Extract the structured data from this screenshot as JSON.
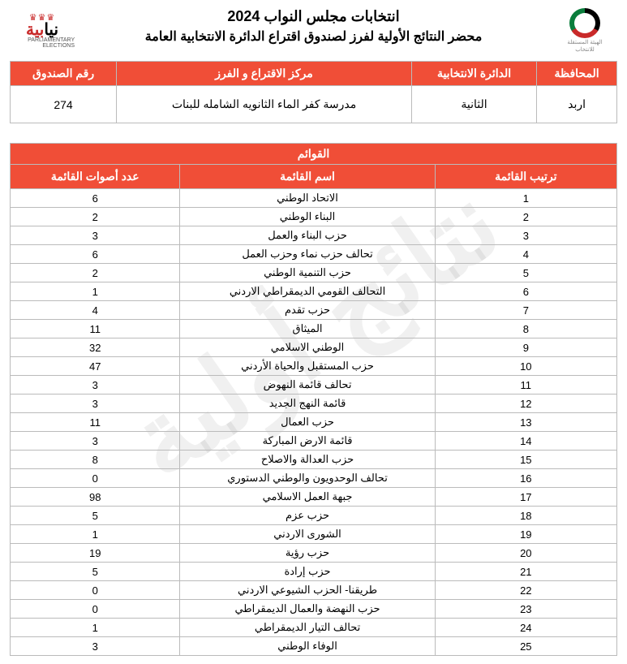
{
  "watermark_text": "نتائج أولية",
  "header": {
    "title1": "انتخابات مجلس النواب 2024",
    "title2": "محضر النتائج الأولية لفرز لصندوق اقتراع الدائرة الانتخابية العامة",
    "logo_right": {
      "brand": "نيابية",
      "year": "2024",
      "sub": "PARLIAMENTARY ELECTIONS"
    },
    "logo_left": {
      "line1": "الهيئة المستقلة",
      "line2": "للانتخاب"
    }
  },
  "info_table": {
    "headers": {
      "governorate": "المحافظة",
      "district": "الدائرة الانتخابية",
      "center": "مركز الاقتراع و الفرز",
      "box": "رقم الصندوق"
    },
    "values": {
      "governorate": "اربد",
      "district": "الثانية",
      "center": "مدرسة كفر الماء الثانويه الشامله للبنات",
      "box": "274"
    },
    "styles": {
      "header_bg": "#f04e37",
      "header_color": "#ffffff",
      "border_color": "#bbbbbb"
    }
  },
  "lists_table": {
    "section_title": "القوائم",
    "headers": {
      "rank": "ترتيب القائمة",
      "name": "اسم القائمة",
      "votes": "عدد أصوات القائمة"
    },
    "rows": [
      {
        "rank": "1",
        "name": "الاتحاد الوطني",
        "votes": "6"
      },
      {
        "rank": "2",
        "name": "البناء الوطني",
        "votes": "2"
      },
      {
        "rank": "3",
        "name": "حزب البناء والعمل",
        "votes": "3"
      },
      {
        "rank": "4",
        "name": "تحالف حزب نماء وحزب العمل",
        "votes": "6"
      },
      {
        "rank": "5",
        "name": "حزب التنمية الوطني",
        "votes": "2"
      },
      {
        "rank": "6",
        "name": "التحالف القومي الديمقراطي الاردني",
        "votes": "1"
      },
      {
        "rank": "7",
        "name": "حزب تقدم",
        "votes": "4"
      },
      {
        "rank": "8",
        "name": "الميثاق",
        "votes": "11"
      },
      {
        "rank": "9",
        "name": "الوطني الاسلامي",
        "votes": "32"
      },
      {
        "rank": "10",
        "name": "حزب المستقبل والحياة الأردني",
        "votes": "47"
      },
      {
        "rank": "11",
        "name": "تحالف قائمة النهوض",
        "votes": "3"
      },
      {
        "rank": "12",
        "name": "قائمة النهج الجديد",
        "votes": "3"
      },
      {
        "rank": "13",
        "name": "حزب العمال",
        "votes": "11"
      },
      {
        "rank": "14",
        "name": "قائمة الارض المباركة",
        "votes": "3"
      },
      {
        "rank": "15",
        "name": "حزب العدالة والاصلاح",
        "votes": "8"
      },
      {
        "rank": "16",
        "name": "تحالف الوحدويون والوطني الدستوري",
        "votes": "0"
      },
      {
        "rank": "17",
        "name": "جبهة العمل الاسلامي",
        "votes": "98"
      },
      {
        "rank": "18",
        "name": "حزب عزم",
        "votes": "5"
      },
      {
        "rank": "19",
        "name": "الشورى الاردني",
        "votes": "1"
      },
      {
        "rank": "20",
        "name": "حزب رؤية",
        "votes": "19"
      },
      {
        "rank": "21",
        "name": "حزب إرادة",
        "votes": "5"
      },
      {
        "rank": "22",
        "name": "طريقنا- الحزب الشيوعي الاردني",
        "votes": "0"
      },
      {
        "rank": "23",
        "name": "حزب النهضة والعمال الديمقراطي",
        "votes": "0"
      },
      {
        "rank": "24",
        "name": "تحالف التيار الديمقراطي",
        "votes": "1"
      },
      {
        "rank": "25",
        "name": "الوفاء الوطني",
        "votes": "3"
      }
    ],
    "styles": {
      "header_bg": "#f04e37",
      "header_color": "#ffffff"
    }
  }
}
